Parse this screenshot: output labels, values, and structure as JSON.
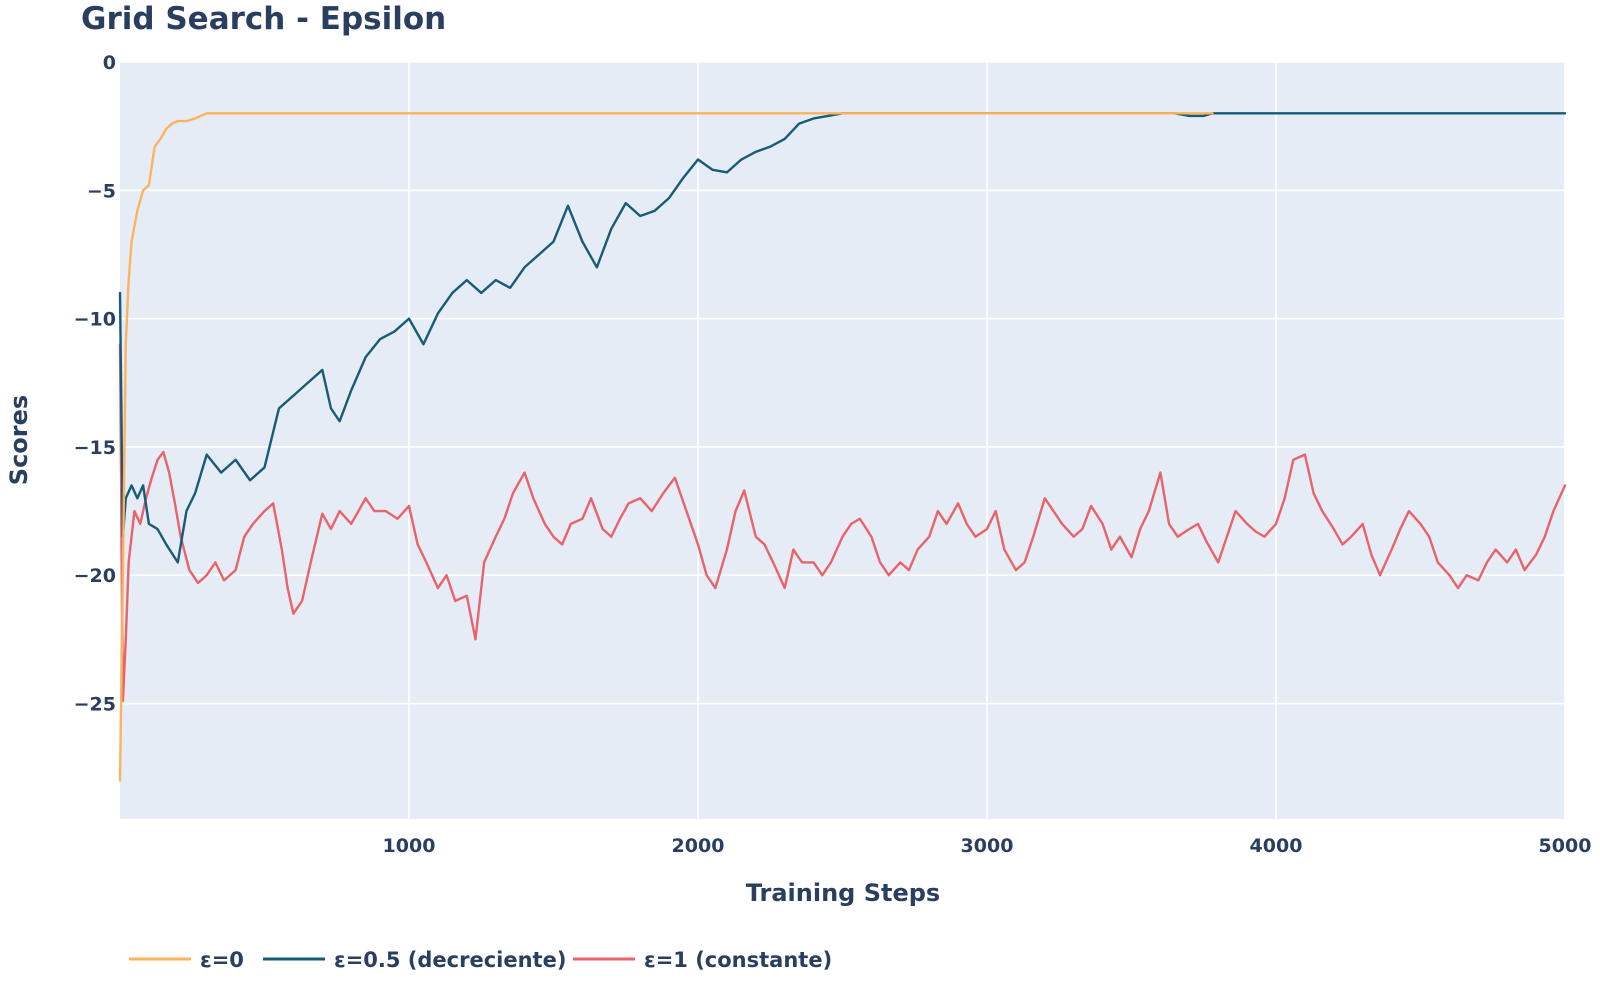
{
  "chart_data": {
    "type": "line",
    "title": "Grid Search - Epsilon",
    "xlabel": "Training Steps",
    "ylabel": "Scores",
    "xlim": [
      0,
      5000
    ],
    "ylim": [
      -29.5,
      0
    ],
    "x_ticks": [
      1000,
      2000,
      3000,
      4000,
      5000
    ],
    "x_tick_labels": [
      "1000",
      "2000",
      "3000",
      "4000",
      "5000"
    ],
    "y_ticks": [
      0,
      -5,
      -10,
      -15,
      -20,
      -25
    ],
    "y_tick_labels": [
      "0",
      "−5",
      "−10",
      "−15",
      "−20",
      "−25"
    ],
    "grid": true,
    "legend_position": "bottom-left",
    "background": "#e5ecf6",
    "gridline_color": "#ffffff",
    "series": [
      {
        "name": "ε=0",
        "color": "#fdb35e",
        "x": [
          0,
          10,
          20,
          30,
          40,
          60,
          80,
          100,
          120,
          140,
          160,
          180,
          200,
          230,
          260,
          300,
          350,
          500,
          1000,
          1500,
          2000,
          2500,
          3000,
          3500,
          3700,
          3760,
          3780
        ],
        "y": [
          -28,
          -20,
          -11,
          -8.5,
          -7,
          -5.8,
          -5,
          -4.8,
          -3.3,
          -3.0,
          -2.6,
          -2.4,
          -2.3,
          -2.3,
          -2.2,
          -2.0,
          -2.0,
          -2.0,
          -2.0,
          -2.0,
          -2.0,
          -2.0,
          -2.0,
          -2.0,
          -2.0,
          -2.0,
          -2.0
        ]
      },
      {
        "name": "ε=0.5 (decreciente)",
        "color": "#175b77",
        "x": [
          0,
          10,
          20,
          40,
          60,
          80,
          100,
          130,
          160,
          200,
          230,
          260,
          300,
          350,
          400,
          450,
          500,
          550,
          600,
          650,
          700,
          730,
          760,
          800,
          850,
          900,
          950,
          1000,
          1050,
          1100,
          1150,
          1200,
          1250,
          1300,
          1350,
          1400,
          1450,
          1500,
          1550,
          1600,
          1650,
          1700,
          1750,
          1800,
          1850,
          1900,
          1950,
          2000,
          2050,
          2100,
          2150,
          2200,
          2250,
          2300,
          2350,
          2400,
          2450,
          2500,
          2550,
          2600,
          3000,
          3500,
          3650,
          3700,
          3750,
          3780,
          3800,
          4000,
          4500,
          5000
        ],
        "y": [
          -9,
          -18.5,
          -17,
          -16.5,
          -17,
          -16.5,
          -18,
          -18.2,
          -18.8,
          -19.5,
          -17.5,
          -16.8,
          -15.3,
          -16.0,
          -15.5,
          -16.3,
          -15.8,
          -13.5,
          -13.0,
          -12.5,
          -12.0,
          -13.5,
          -14.0,
          -12.8,
          -11.5,
          -10.8,
          -10.5,
          -10.0,
          -11.0,
          -9.8,
          -9.0,
          -8.5,
          -9.0,
          -8.5,
          -8.8,
          -8.0,
          -7.5,
          -7.0,
          -5.6,
          -7.0,
          -8.0,
          -6.5,
          -5.5,
          -6.0,
          -5.8,
          -5.3,
          -4.5,
          -3.8,
          -4.2,
          -4.3,
          -3.8,
          -3.5,
          -3.3,
          -3.0,
          -2.4,
          -2.2,
          -2.1,
          -2.0,
          -2.0,
          -2.0,
          -2.0,
          -2.0,
          -2.0,
          -2.1,
          -2.1,
          -2.0,
          -2.0,
          -2.0,
          -2.0,
          -2.0
        ]
      },
      {
        "name": "ε=1 (constante)",
        "color": "#e8636a",
        "x": [
          0,
          10,
          20,
          30,
          50,
          70,
          90,
          110,
          130,
          150,
          170,
          190,
          210,
          240,
          270,
          300,
          330,
          360,
          400,
          430,
          460,
          500,
          530,
          560,
          580,
          600,
          630,
          660,
          700,
          730,
          760,
          800,
          850,
          880,
          920,
          960,
          1000,
          1030,
          1060,
          1100,
          1130,
          1160,
          1200,
          1230,
          1260,
          1300,
          1330,
          1360,
          1400,
          1430,
          1470,
          1500,
          1530,
          1560,
          1600,
          1630,
          1670,
          1700,
          1730,
          1760,
          1800,
          1840,
          1880,
          1920,
          1960,
          2000,
          2030,
          2060,
          2100,
          2130,
          2160,
          2200,
          2230,
          2260,
          2300,
          2330,
          2360,
          2400,
          2430,
          2460,
          2500,
          2530,
          2560,
          2600,
          2630,
          2660,
          2700,
          2730,
          2760,
          2800,
          2830,
          2860,
          2900,
          2930,
          2960,
          3000,
          3030,
          3060,
          3100,
          3130,
          3160,
          3200,
          3230,
          3260,
          3300,
          3330,
          3360,
          3400,
          3430,
          3460,
          3500,
          3530,
          3560,
          3600,
          3630,
          3660,
          3700,
          3730,
          3760,
          3800,
          3830,
          3860,
          3900,
          3930,
          3960,
          4000,
          4030,
          4060,
          4100,
          4130,
          4160,
          4200,
          4230,
          4260,
          4300,
          4330,
          4360,
          4400,
          4430,
          4460,
          4500,
          4530,
          4560,
          4600,
          4630,
          4660,
          4700,
          4730,
          4760,
          4800,
          4830,
          4860,
          4900,
          4930,
          4960,
          5000
        ],
        "y": [
          -11,
          -24.9,
          -22.5,
          -19.5,
          -17.5,
          -18.0,
          -17.0,
          -16.2,
          -15.5,
          -15.2,
          -16.0,
          -17.2,
          -18.5,
          -19.8,
          -20.3,
          -20.0,
          -19.5,
          -20.2,
          -19.8,
          -18.5,
          -18.0,
          -17.5,
          -17.2,
          -19.0,
          -20.5,
          -21.5,
          -21.0,
          -19.5,
          -17.6,
          -18.2,
          -17.5,
          -18.0,
          -17.0,
          -17.5,
          -17.5,
          -17.8,
          -17.3,
          -18.8,
          -19.5,
          -20.5,
          -20.0,
          -21.0,
          -20.8,
          -22.5,
          -19.5,
          -18.5,
          -17.8,
          -16.8,
          -16.0,
          -17.0,
          -18.0,
          -18.5,
          -18.8,
          -18.0,
          -17.8,
          -17.0,
          -18.2,
          -18.5,
          -17.8,
          -17.2,
          -17.0,
          -17.5,
          -16.8,
          -16.2,
          -17.5,
          -18.8,
          -20.0,
          -20.5,
          -19.0,
          -17.5,
          -16.7,
          -18.5,
          -18.8,
          -19.5,
          -20.5,
          -19.0,
          -19.5,
          -19.5,
          -20.0,
          -19.5,
          -18.5,
          -18.0,
          -17.8,
          -18.5,
          -19.5,
          -20.0,
          -19.5,
          -19.8,
          -19.0,
          -18.5,
          -17.5,
          -18.0,
          -17.2,
          -18.0,
          -18.5,
          -18.2,
          -17.5,
          -19.0,
          -19.8,
          -19.5,
          -18.5,
          -17.0,
          -17.5,
          -18.0,
          -18.5,
          -18.2,
          -17.3,
          -18.0,
          -19.0,
          -18.5,
          -19.3,
          -18.2,
          -17.5,
          -16.0,
          -18.0,
          -18.5,
          -18.2,
          -18.0,
          -18.7,
          -19.5,
          -18.5,
          -17.5,
          -18.0,
          -18.3,
          -18.5,
          -18.0,
          -17.0,
          -15.5,
          -15.3,
          -16.8,
          -17.5,
          -18.2,
          -18.8,
          -18.5,
          -18.0,
          -19.2,
          -20.0,
          -19.0,
          -18.2,
          -17.5,
          -18.0,
          -18.5,
          -19.5,
          -20.0,
          -20.5,
          -20.0,
          -20.2,
          -19.5,
          -19.0,
          -19.5,
          -19.0,
          -19.8,
          -19.2,
          -18.5,
          -17.5,
          -16.5
        ]
      }
    ]
  }
}
